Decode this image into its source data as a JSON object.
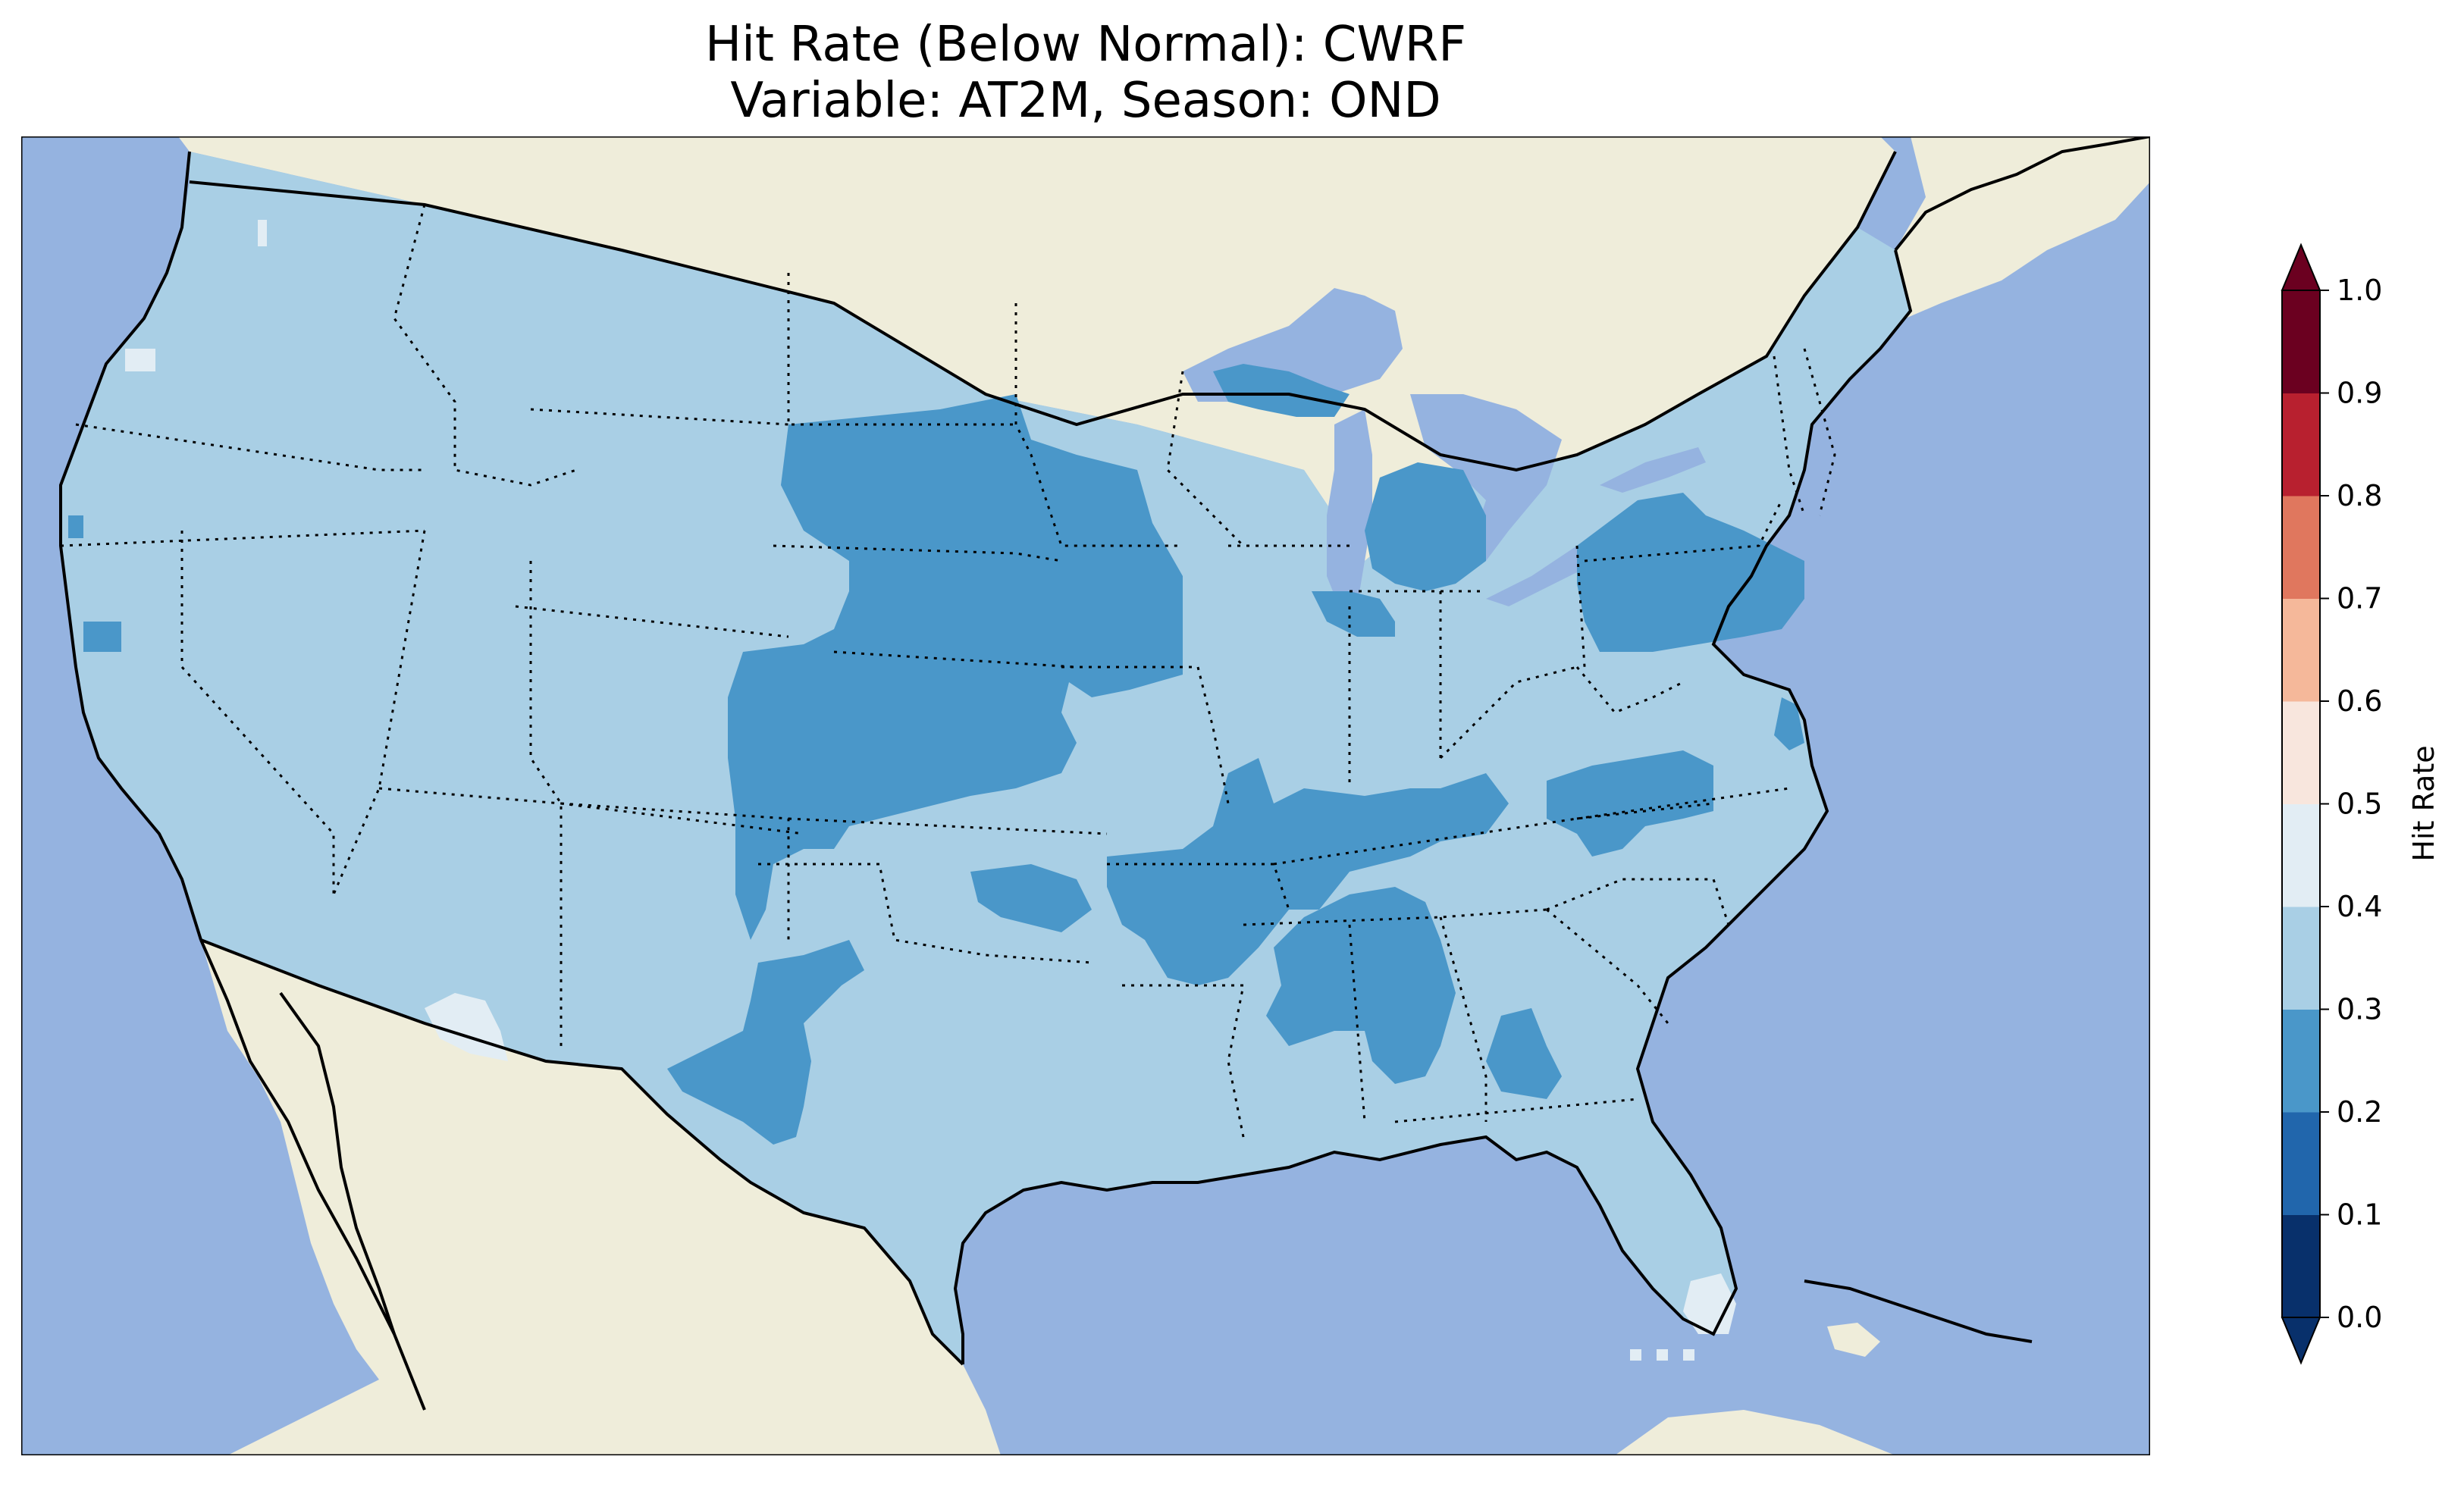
{
  "title": {
    "line1": "Hit Rate (Below Normal): CWRF",
    "line2": "Variable: AT2M, Season: OND"
  },
  "colorbar": {
    "label": "Hit Rate",
    "ticks": [
      "0.0",
      "0.1",
      "0.2",
      "0.3",
      "0.4",
      "0.5",
      "0.6",
      "0.7",
      "0.8",
      "0.9",
      "1.0"
    ],
    "colors": [
      "#053061",
      "#2166ac",
      "#4393c3",
      "#92c5de",
      "#d1e5f0",
      "#f7f7f7",
      "#fddbc7",
      "#f4a582",
      "#d6604d",
      "#b2182b",
      "#67001f"
    ]
  },
  "legend_bins": [
    {
      "range": "0.0–0.1",
      "color": "#08306b"
    },
    {
      "range": "0.1–0.2",
      "color": "#2166ac"
    },
    {
      "range": "0.2–0.3",
      "color": "#4a97c9"
    },
    {
      "range": "0.3–0.4",
      "color": "#a9cfe5"
    },
    {
      "range": "0.4–0.5",
      "color": "#e2edf4"
    },
    {
      "range": "0.5–0.6",
      "color": "#f8e6dd"
    },
    {
      "range": "0.6–0.7",
      "color": "#f5b89a"
    },
    {
      "range": "0.7–0.8",
      "color": "#e0775e"
    },
    {
      "range": "0.8–0.9",
      "color": "#b8202f"
    },
    {
      "range": "0.9–1.0",
      "color": "#6b0020"
    }
  ],
  "map_colors": {
    "ocean": "#95b3e0",
    "land": "#efedda",
    "lakes": "#95b3e0",
    "hit_0_3_to_0_4": "#a9cfe5",
    "hit_0_2_to_0_3": "#4a97c9",
    "hit_0_4_to_0_5": "#e2edf4"
  }
}
